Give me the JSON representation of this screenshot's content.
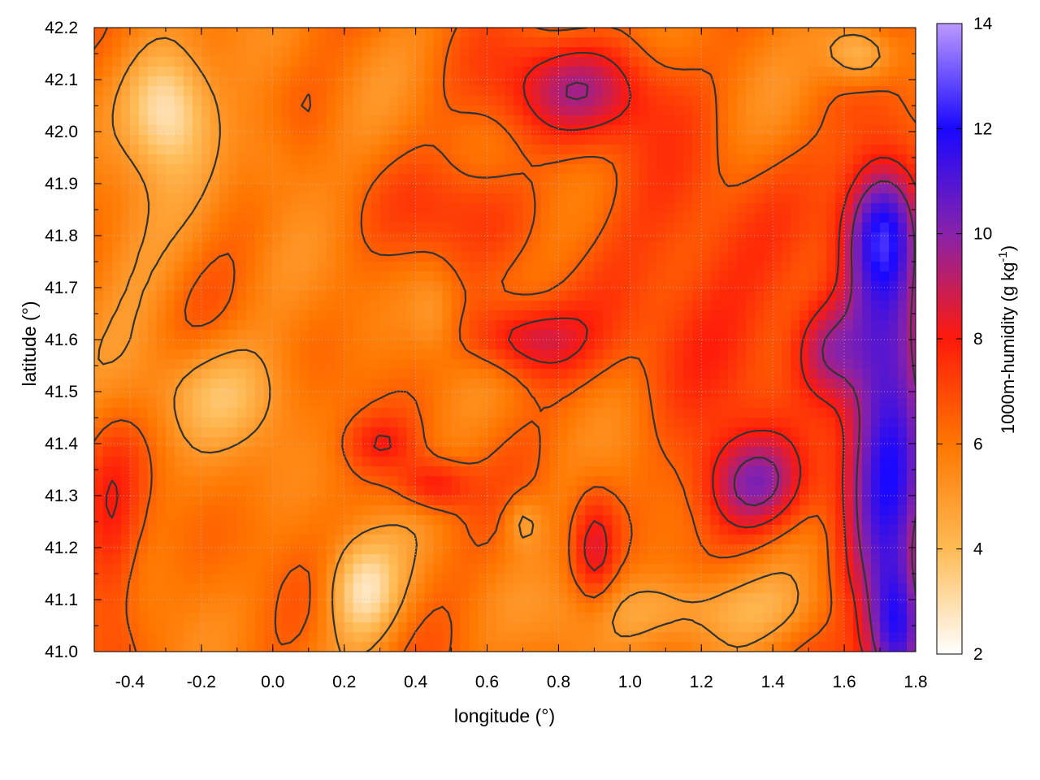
{
  "chart_data": {
    "type": "heatmap",
    "title": "",
    "xlabel": "longitude (°)",
    "ylabel": "latitude (°)",
    "xlim": [
      -0.5,
      1.8
    ],
    "ylim": [
      41.0,
      42.2
    ],
    "xticks": [
      "-0.4",
      "-0.2",
      "0.0",
      "0.2",
      "0.4",
      "0.6",
      "0.8",
      "1.0",
      "1.2",
      "1.4",
      "1.6",
      "1.8"
    ],
    "xtick_values": [
      -0.4,
      -0.2,
      0.0,
      0.2,
      0.4,
      0.6,
      0.8,
      1.0,
      1.2,
      1.4,
      1.6,
      1.8
    ],
    "yticks": [
      "41.0",
      "41.1",
      "41.2",
      "41.3",
      "41.4",
      "41.5",
      "41.6",
      "41.7",
      "41.8",
      "41.9",
      "42.0",
      "42.1",
      "42.2"
    ],
    "ytick_values": [
      41.0,
      41.1,
      41.2,
      41.3,
      41.4,
      41.5,
      41.6,
      41.7,
      41.8,
      41.9,
      42.0,
      42.1,
      42.2
    ],
    "grid": true,
    "colorbar": {
      "label": "1000m-humidity (g kg",
      "label_sup": "-1",
      "label_end": ")",
      "range": [
        2,
        14
      ],
      "ticks": [
        "2",
        "4",
        "6",
        "8",
        "10",
        "12",
        "14"
      ],
      "tick_values": [
        2,
        4,
        6,
        8,
        10,
        12,
        14
      ],
      "colors": [
        "#ffffff",
        "#ffbb55",
        "#ff7700",
        "#ff1a0a",
        "#8822aa",
        "#1a08ff",
        "#bb99ff"
      ]
    },
    "contour_color": "#333333",
    "humidity_field": {
      "base": 6.0,
      "features": [
        {
          "lon": 1.72,
          "lat": 41.45,
          "value": 5.6,
          "sx": 0.12,
          "sy": 0.45
        },
        {
          "lon": 1.75,
          "lat": 41.05,
          "value": 4.5,
          "sx": 0.08,
          "sy": 0.12
        },
        {
          "lon": 1.7,
          "lat": 41.82,
          "value": 3.5,
          "sx": 0.1,
          "sy": 0.12
        },
        {
          "lon": 1.35,
          "lat": 41.32,
          "value": 4.0,
          "sx": 0.15,
          "sy": 0.1
        },
        {
          "lon": 1.55,
          "lat": 41.58,
          "value": 3.0,
          "sx": 0.1,
          "sy": 0.1
        },
        {
          "lon": 0.85,
          "lat": 42.08,
          "value": 3.2,
          "sx": 0.22,
          "sy": 0.1
        },
        {
          "lon": 0.7,
          "lat": 41.6,
          "value": 2.8,
          "sx": 0.16,
          "sy": 0.07
        },
        {
          "lon": 0.45,
          "lat": 41.32,
          "value": 2.5,
          "sx": 0.1,
          "sy": 0.05
        },
        {
          "lon": 0.9,
          "lat": 41.2,
          "value": 2.2,
          "sx": 0.06,
          "sy": 0.12
        },
        {
          "lon": 1.2,
          "lat": 41.7,
          "value": 1.8,
          "sx": 0.25,
          "sy": 0.25
        },
        {
          "lon": 0.55,
          "lat": 41.85,
          "value": 1.2,
          "sx": 0.25,
          "sy": 0.1
        },
        {
          "lon": -0.3,
          "lat": 42.05,
          "value": -3.5,
          "sx": 0.12,
          "sy": 0.12
        },
        {
          "lon": 0.25,
          "lat": 41.12,
          "value": -3.0,
          "sx": 0.1,
          "sy": 0.1
        },
        {
          "lon": -0.15,
          "lat": 41.5,
          "value": -1.8,
          "sx": 0.2,
          "sy": 0.1
        },
        {
          "lon": 1.2,
          "lat": 41.08,
          "value": -1.8,
          "sx": 0.35,
          "sy": 0.07
        },
        {
          "lon": 1.65,
          "lat": 42.15,
          "value": -3.0,
          "sx": 0.1,
          "sy": 0.06
        },
        {
          "lon": 0.7,
          "lat": 41.25,
          "value": -1.5,
          "sx": 0.05,
          "sy": 0.05
        },
        {
          "lon": 0.0,
          "lat": 41.95,
          "value": -1.2,
          "sx": 0.1,
          "sy": 0.1
        },
        {
          "lon": 0.45,
          "lat": 41.65,
          "value": -1.0,
          "sx": 0.06,
          "sy": 0.08
        },
        {
          "lon": -0.45,
          "lat": 41.2,
          "value": 1.5,
          "sx": 0.08,
          "sy": 0.25
        },
        {
          "lon": 0.3,
          "lat": 41.4,
          "value": 1.5,
          "sx": 0.1,
          "sy": 0.05
        },
        {
          "lon": -0.4,
          "lat": 41.75,
          "value": -0.8,
          "sx": 0.15,
          "sy": 0.15
        }
      ],
      "contour_levels": [
        5.0,
        6.5,
        8.0,
        9.5
      ]
    }
  }
}
